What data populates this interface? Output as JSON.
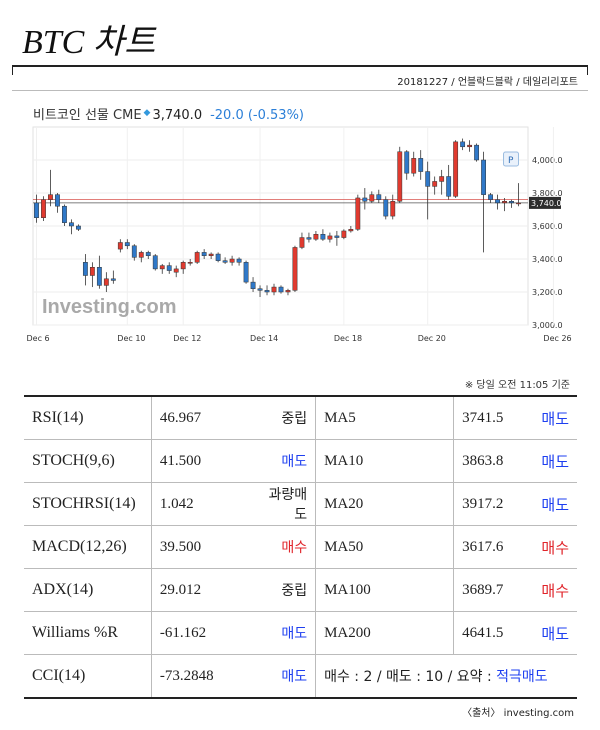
{
  "page": {
    "title": "BTC 차트",
    "date_source": "20181227 / 언블락드블락 / 데일리리포트",
    "note": "※ 당일 오전 11:05 기준",
    "source": "〈출처〉 investing.com"
  },
  "chart_header": {
    "name": "비트코인 선물 CME",
    "price": "3,740.0",
    "change": "-20.0 (-0.53%)"
  },
  "watermark": "Investing.com",
  "colors": {
    "up": "#e03a2f",
    "down": "#2f78c8",
    "sell": "#1e3ff0",
    "buy": "#e0242a"
  },
  "chart_data": {
    "type": "candlestick",
    "title": "",
    "xlabel": "",
    "ylabel": "",
    "ylim": [
      3000,
      4200
    ],
    "yticks": [
      "3,000.0",
      "3,200.0",
      "3,400.0",
      "3,600.0",
      "3,800.0",
      "4,000.0"
    ],
    "ytick_values": [
      3000,
      3200,
      3400,
      3600,
      3800,
      4000
    ],
    "xticks": [
      {
        "label": "Dec 6",
        "index": 0
      },
      {
        "label": "Dec 10",
        "index": 13
      },
      {
        "label": "Dec 12",
        "index": 21
      },
      {
        "label": "Dec 14",
        "index": 32
      },
      {
        "label": "Dec 18",
        "index": 44
      },
      {
        "label": "Dec 20",
        "index": 56
      },
      {
        "label": "Dec 26",
        "index": 74
      }
    ],
    "last_price_label": "3,740.0",
    "last_price": 3740,
    "reference_line": 3760,
    "marker": "P",
    "candles": [
      [
        3740,
        3790,
        3620,
        3650
      ],
      [
        3650,
        3780,
        3630,
        3760
      ],
      [
        3760,
        3940,
        3720,
        3790
      ],
      [
        3790,
        3800,
        3680,
        3720
      ],
      [
        3720,
        3730,
        3600,
        3620
      ],
      [
        3620,
        3640,
        3550,
        3600
      ],
      [
        3600,
        3610,
        3570,
        3580
      ],
      [
        3380,
        3430,
        3240,
        3300
      ],
      [
        3300,
        3380,
        3230,
        3350
      ],
      [
        3350,
        3420,
        3220,
        3240
      ],
      [
        3240,
        3320,
        3200,
        3280
      ],
      [
        3280,
        3330,
        3250,
        3270
      ],
      [
        3460,
        3520,
        3440,
        3500
      ],
      [
        3500,
        3520,
        3460,
        3480
      ],
      [
        3480,
        3490,
        3390,
        3410
      ],
      [
        3410,
        3450,
        3380,
        3440
      ],
      [
        3440,
        3450,
        3400,
        3420
      ],
      [
        3420,
        3430,
        3330,
        3340
      ],
      [
        3340,
        3370,
        3310,
        3360
      ],
      [
        3360,
        3380,
        3310,
        3330
      ],
      [
        3320,
        3360,
        3290,
        3340
      ],
      [
        3340,
        3390,
        3310,
        3380
      ],
      [
        3380,
        3400,
        3360,
        3380
      ],
      [
        3380,
        3450,
        3370,
        3440
      ],
      [
        3440,
        3460,
        3400,
        3420
      ],
      [
        3420,
        3440,
        3400,
        3430
      ],
      [
        3430,
        3440,
        3380,
        3390
      ],
      [
        3390,
        3410,
        3370,
        3380
      ],
      [
        3380,
        3420,
        3360,
        3400
      ],
      [
        3400,
        3410,
        3360,
        3380
      ],
      [
        3380,
        3390,
        3250,
        3260
      ],
      [
        3260,
        3290,
        3200,
        3220
      ],
      [
        3220,
        3240,
        3170,
        3210
      ],
      [
        3210,
        3240,
        3180,
        3200
      ],
      [
        3200,
        3250,
        3180,
        3230
      ],
      [
        3230,
        3240,
        3190,
        3200
      ],
      [
        3200,
        3220,
        3180,
        3210
      ],
      [
        3210,
        3480,
        3200,
        3470
      ],
      [
        3470,
        3560,
        3460,
        3530
      ],
      [
        3530,
        3560,
        3500,
        3520
      ],
      [
        3520,
        3570,
        3510,
        3550
      ],
      [
        3550,
        3580,
        3510,
        3520
      ],
      [
        3520,
        3560,
        3500,
        3540
      ],
      [
        3540,
        3570,
        3480,
        3530
      ],
      [
        3530,
        3580,
        3520,
        3570
      ],
      [
        3570,
        3600,
        3560,
        3580
      ],
      [
        3580,
        3790,
        3570,
        3770
      ],
      [
        3770,
        3830,
        3700,
        3750
      ],
      [
        3750,
        3810,
        3740,
        3790
      ],
      [
        3790,
        3820,
        3740,
        3760
      ],
      [
        3760,
        3780,
        3640,
        3660
      ],
      [
        3660,
        3790,
        3640,
        3750
      ],
      [
        3750,
        4080,
        3740,
        4050
      ],
      [
        4050,
        4060,
        3880,
        3920
      ],
      [
        3920,
        4050,
        3900,
        4010
      ],
      [
        4010,
        4060,
        3880,
        3930
      ],
      [
        3930,
        3990,
        3640,
        3840
      ],
      [
        3840,
        3900,
        3790,
        3870
      ],
      [
        3870,
        3940,
        3790,
        3900
      ],
      [
        3900,
        3970,
        3760,
        3780
      ],
      [
        3780,
        4120,
        3770,
        4110
      ],
      [
        4110,
        4130,
        4060,
        4080
      ],
      [
        4080,
        4120,
        4050,
        4090
      ],
      [
        4090,
        4100,
        3990,
        4000
      ],
      [
        4000,
        4050,
        3440,
        3790
      ],
      [
        3790,
        3800,
        3740,
        3760
      ],
      [
        3760,
        3790,
        3700,
        3740
      ],
      [
        3740,
        3770,
        3690,
        3750
      ],
      [
        3750,
        3760,
        3710,
        3740
      ],
      [
        3740,
        3860,
        3720,
        3740
      ]
    ]
  },
  "indicators": [
    {
      "name": "RSI(14)",
      "value": "46.967",
      "signal": "중립",
      "sig_class": "neutral",
      "ma": "MA5",
      "ma_value": "3741.5",
      "ma_signal": "매도",
      "ma_class": "sell"
    },
    {
      "name": "STOCH(9,6)",
      "value": "41.500",
      "signal": "매도",
      "sig_class": "sell",
      "ma": "MA10",
      "ma_value": "3863.8",
      "ma_signal": "매도",
      "ma_class": "sell"
    },
    {
      "name": "STOCHRSI(14)",
      "value": "1.042",
      "signal": "과량매도",
      "sig_class": "neutral",
      "ma": "MA20",
      "ma_value": "3917.2",
      "ma_signal": "매도",
      "ma_class": "sell"
    },
    {
      "name": "MACD(12,26)",
      "value": "39.500",
      "signal": "매수",
      "sig_class": "buy",
      "ma": "MA50",
      "ma_value": "3617.6",
      "ma_signal": "매수",
      "ma_class": "buy"
    },
    {
      "name": "ADX(14)",
      "value": "29.012",
      "signal": "중립",
      "sig_class": "neutral",
      "ma": "MA100",
      "ma_value": "3689.7",
      "ma_signal": "매수",
      "ma_class": "buy"
    },
    {
      "name": "Williams %R",
      "value": "-61.162",
      "signal": "매도",
      "sig_class": "sell",
      "ma": "MA200",
      "ma_value": "4641.5",
      "ma_signal": "매도",
      "ma_class": "sell"
    },
    {
      "name": "CCI(14)",
      "value": "-73.2848",
      "signal": "매도",
      "sig_class": "sell"
    }
  ],
  "summary": {
    "text": "매수 : 2 / 매도 : 10 / 요약 : ",
    "verdict": "적극매도"
  }
}
